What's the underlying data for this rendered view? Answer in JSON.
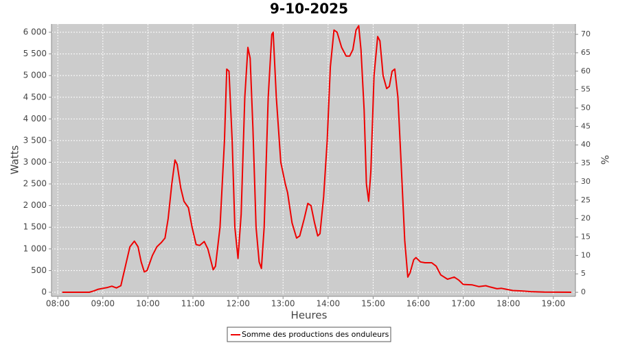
{
  "chart_data": {
    "type": "line",
    "title": "9-10-2025",
    "xlabel": "Heures",
    "ylabel": "Watts",
    "y2label": "%",
    "x": [
      8.1,
      8.7,
      8.8,
      8.9,
      9.0,
      9.1,
      9.2,
      9.3,
      9.4,
      9.5,
      9.6,
      9.7,
      9.78,
      9.85,
      9.92,
      9.98,
      10.1,
      10.2,
      10.3,
      10.38,
      10.45,
      10.53,
      10.6,
      10.65,
      10.73,
      10.8,
      10.9,
      10.98,
      11.07,
      11.15,
      11.25,
      11.33,
      11.45,
      11.5,
      11.6,
      11.7,
      11.75,
      11.8,
      11.87,
      11.93,
      12.0,
      12.07,
      12.15,
      12.22,
      12.27,
      12.33,
      12.4,
      12.47,
      12.52,
      12.58,
      12.67,
      12.75,
      12.78,
      12.85,
      12.95,
      13.05,
      13.1,
      13.2,
      13.3,
      13.37,
      13.47,
      13.55,
      13.62,
      13.7,
      13.77,
      13.82,
      13.9,
      13.98,
      14.05,
      14.13,
      14.2,
      14.3,
      14.4,
      14.48,
      14.55,
      14.62,
      14.68,
      14.73,
      14.8,
      14.85,
      14.9,
      14.95,
      15.02,
      15.1,
      15.15,
      15.22,
      15.3,
      15.36,
      15.42,
      15.48,
      15.55,
      15.62,
      15.7,
      15.77,
      15.82,
      15.9,
      15.95,
      16.05,
      16.15,
      16.3,
      16.4,
      16.5,
      16.65,
      16.8,
      16.9,
      17.0,
      17.2,
      17.35,
      17.5,
      17.6,
      17.75,
      17.85,
      17.95,
      18.1,
      18.3,
      18.5,
      18.8,
      19.4
    ],
    "series": [
      {
        "name": "Somme des productions des onduleurs",
        "color": "#ee0000",
        "values": [
          0,
          0,
          30,
          70,
          90,
          110,
          140,
          100,
          150,
          600,
          1050,
          1180,
          1050,
          700,
          470,
          500,
          850,
          1050,
          1150,
          1250,
          1700,
          2500,
          3050,
          2950,
          2400,
          2100,
          1950,
          1500,
          1100,
          1080,
          1170,
          1000,
          520,
          600,
          1500,
          3500,
          5150,
          5100,
          3500,
          1500,
          780,
          1800,
          4500,
          5650,
          5400,
          3800,
          1500,
          700,
          550,
          1500,
          4500,
          5950,
          6000,
          4500,
          3000,
          2500,
          2300,
          1600,
          1250,
          1300,
          1700,
          2050,
          2000,
          1600,
          1300,
          1350,
          2200,
          3500,
          5200,
          6050,
          6000,
          5650,
          5450,
          5450,
          5600,
          6050,
          6150,
          5600,
          4200,
          2500,
          2100,
          2800,
          5000,
          5900,
          5800,
          5000,
          4700,
          4750,
          5100,
          5150,
          4500,
          3000,
          1200,
          350,
          450,
          750,
          800,
          700,
          680,
          680,
          600,
          400,
          300,
          350,
          280,
          180,
          170,
          130,
          150,
          120,
          80,
          90,
          70,
          40,
          30,
          15,
          5,
          0
        ]
      }
    ],
    "xlim": [
      7.86,
      19.49
    ],
    "xticks": [
      {
        "value": 8,
        "label": "08:00"
      },
      {
        "value": 9,
        "label": "09:00"
      },
      {
        "value": 10,
        "label": "10:00"
      },
      {
        "value": 11,
        "label": "11:00"
      },
      {
        "value": 12,
        "label": "12:00"
      },
      {
        "value": 13,
        "label": "13:00"
      },
      {
        "value": 14,
        "label": "14:00"
      },
      {
        "value": 15,
        "label": "15:00"
      },
      {
        "value": 16,
        "label": "16:00"
      },
      {
        "value": 17,
        "label": "17:00"
      },
      {
        "value": 18,
        "label": "18:00"
      },
      {
        "value": 19,
        "label": "19:00"
      }
    ],
    "ylim": [
      -95,
      6190
    ],
    "yticks": [
      0,
      500,
      {
        "value": 1000,
        "label": "1 000"
      },
      {
        "value": 1500,
        "label": "1 500"
      },
      {
        "value": 2000,
        "label": "2 000"
      },
      {
        "value": 2500,
        "label": "2 500"
      },
      {
        "value": 3000,
        "label": "3 000"
      },
      {
        "value": 3500,
        "label": "3 500"
      },
      {
        "value": 4000,
        "label": "4 000"
      },
      {
        "value": 4500,
        "label": "4 500"
      },
      {
        "value": 5000,
        "label": "5 000"
      },
      {
        "value": 5500,
        "label": "5 500"
      },
      {
        "value": 6000,
        "label": "6 000"
      }
    ],
    "y2lim": [
      -1.1,
      72.8
    ],
    "y2ticks": [
      0,
      5,
      10,
      15,
      20,
      25,
      30,
      35,
      40,
      45,
      50,
      55,
      60,
      65,
      70
    ],
    "grid": true,
    "legend": "bottom"
  }
}
